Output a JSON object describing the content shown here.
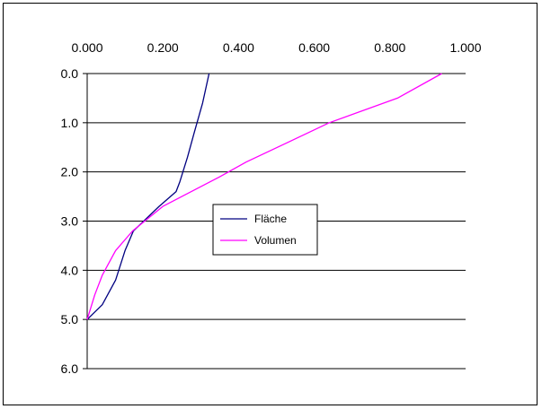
{
  "chart_data": {
    "type": "line",
    "title": "",
    "xlabel": "",
    "ylabel": "",
    "x_axis_position": "top",
    "y_axis_inverted": true,
    "xlim": [
      0.0,
      1.0
    ],
    "ylim": [
      0.0,
      6.0
    ],
    "x_ticks": [
      "0.000",
      "0.200",
      "0.400",
      "0.600",
      "0.800",
      "1.000"
    ],
    "y_ticks": [
      "0.0",
      "1.0",
      "2.0",
      "3.0",
      "4.0",
      "5.0",
      "6.0"
    ],
    "grid": "horizontal",
    "legend_position": "center",
    "series": [
      {
        "name": "Fläche",
        "color": "#000080",
        "points": [
          [
            0.322,
            0.0
          ],
          [
            0.305,
            0.6
          ],
          [
            0.283,
            1.2
          ],
          [
            0.265,
            1.7
          ],
          [
            0.245,
            2.2
          ],
          [
            0.235,
            2.4
          ],
          [
            0.19,
            2.7
          ],
          [
            0.122,
            3.2
          ],
          [
            0.1,
            3.6
          ],
          [
            0.075,
            4.2
          ],
          [
            0.04,
            4.7
          ],
          [
            0.0,
            5.0
          ]
        ]
      },
      {
        "name": "Volumen",
        "color": "#ff00ff",
        "points": [
          [
            0.937,
            0.0
          ],
          [
            0.82,
            0.5
          ],
          [
            0.64,
            1.0
          ],
          [
            0.53,
            1.4
          ],
          [
            0.42,
            1.8
          ],
          [
            0.35,
            2.1
          ],
          [
            0.25,
            2.5
          ],
          [
            0.2,
            2.7
          ],
          [
            0.12,
            3.2
          ],
          [
            0.075,
            3.6
          ],
          [
            0.04,
            4.1
          ],
          [
            0.02,
            4.5
          ],
          [
            0.0,
            5.0
          ]
        ]
      }
    ]
  }
}
